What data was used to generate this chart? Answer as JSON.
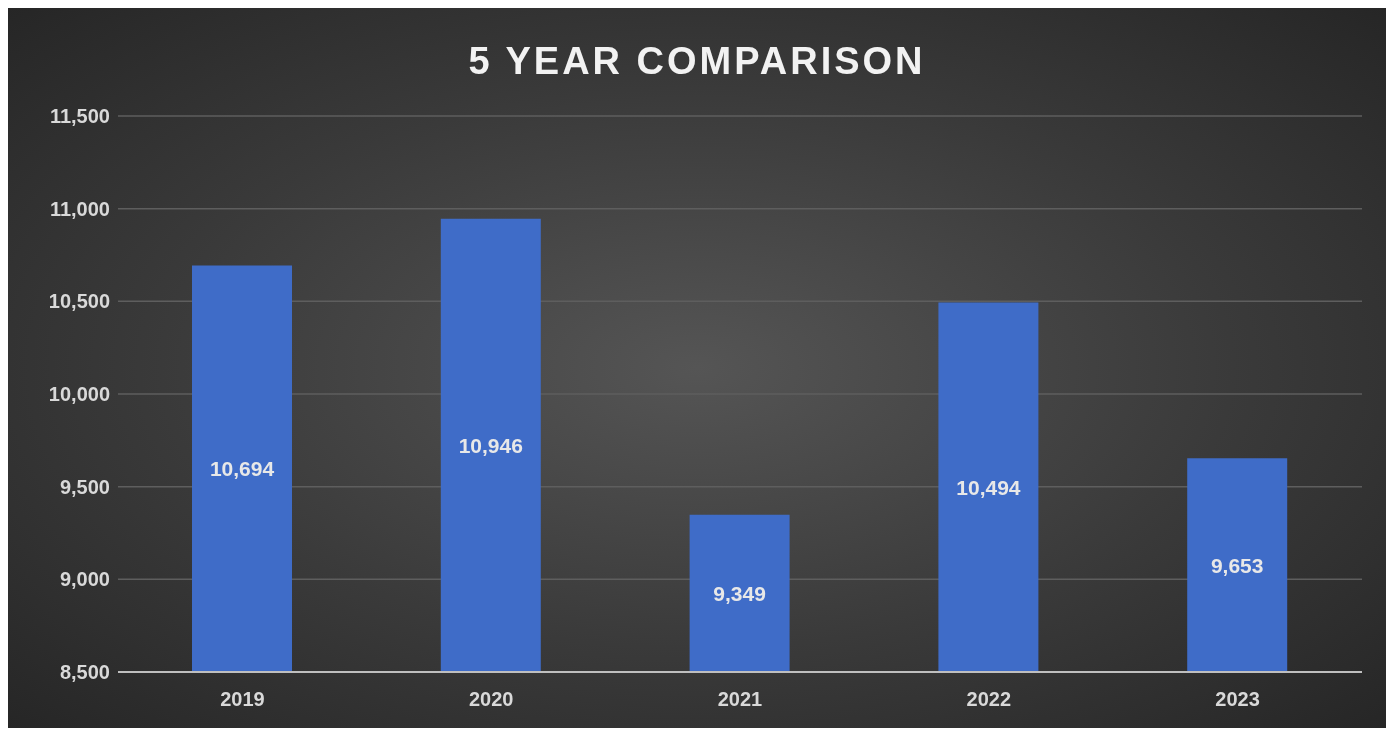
{
  "chart_data": {
    "type": "bar",
    "title": "5 YEAR COMPARISON",
    "categories": [
      "2019",
      "2020",
      "2021",
      "2022",
      "2023"
    ],
    "values": [
      10694,
      10946,
      9349,
      10494,
      9653
    ],
    "value_labels": [
      "10,694",
      "10,946",
      "9,349",
      "10,494",
      "9,653"
    ],
    "color": "#3f6cc8",
    "ylim": [
      8500,
      11500
    ],
    "yticks": [
      {
        "value": 8500,
        "label": "8,500"
      },
      {
        "value": 9000,
        "label": "9,000"
      },
      {
        "value": 9500,
        "label": "9,500"
      },
      {
        "value": 10000,
        "label": "10,000"
      },
      {
        "value": 10500,
        "label": "10,500"
      },
      {
        "value": 11000,
        "label": "11,000"
      },
      {
        "value": 11500,
        "label": "11,500"
      }
    ],
    "grid": "y"
  }
}
